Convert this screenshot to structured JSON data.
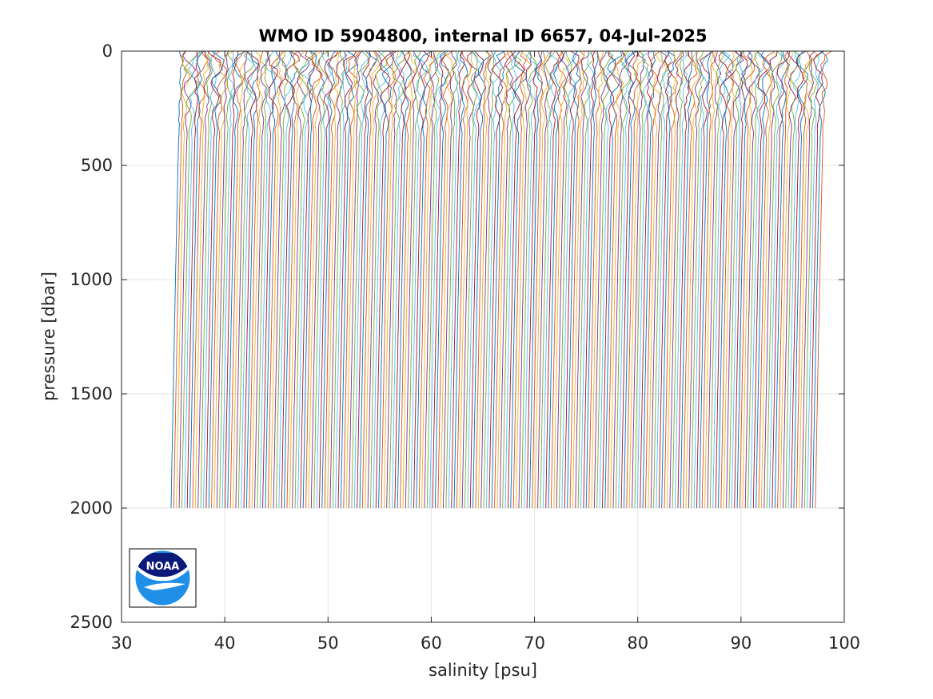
{
  "chart_data": {
    "type": "line",
    "title": "WMO ID 5904800, internal ID 6657, 04-Jul-2025",
    "xlabel": "salinity [psu]",
    "ylabel": "pressure [dbar]",
    "xlim": [
      30,
      100
    ],
    "ylim": [
      0,
      2500
    ],
    "y_reversed": true,
    "grid": true,
    "xticks": [
      "30",
      "40",
      "50",
      "60",
      "70",
      "80",
      "90",
      "100"
    ],
    "yticks": [
      "0",
      "500",
      "1000",
      "1500",
      "2000",
      "2500"
    ],
    "series_description": "Waterfall of consecutive float profiles; each profile offset in salinity from the previous one",
    "profile_count": 240,
    "profile_start_surface_salinity": 35.8,
    "profile_end_surface_salinity": 98.2,
    "profile_surface_to_deep_shift": -1.0,
    "profile_max_pressure": 2000,
    "line_colors": [
      "#0072bd",
      "#d95319",
      "#edb120",
      "#7e2f8e",
      "#77ac30",
      "#4dbeee",
      "#a2142f"
    ],
    "logo": "noaa-logo"
  }
}
